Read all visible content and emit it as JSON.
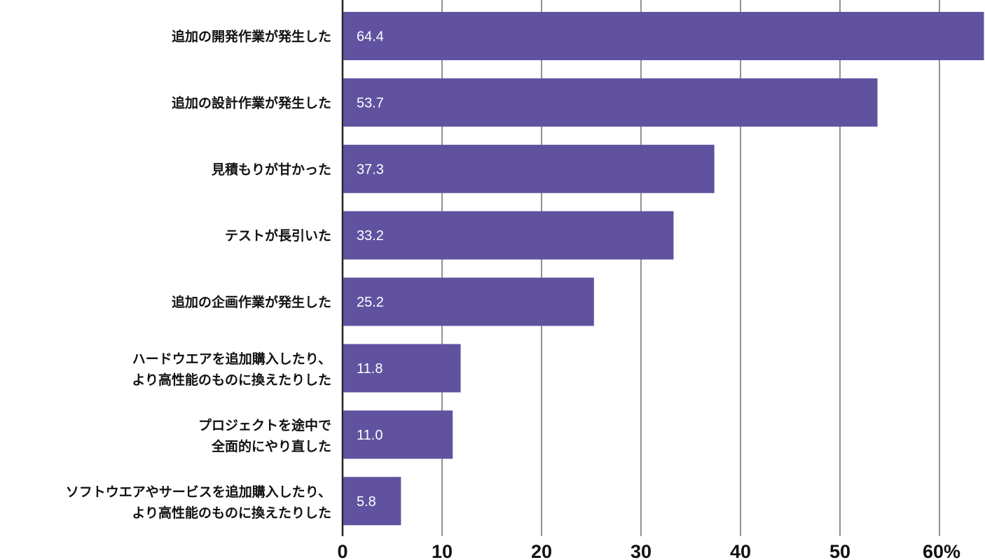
{
  "chart_data": {
    "type": "bar",
    "orientation": "horizontal",
    "categories": [
      [
        "追加の開発作業が発生した"
      ],
      [
        "追加の設計作業が発生した"
      ],
      [
        "見積もりが甘かった"
      ],
      [
        "テストが長引いた"
      ],
      [
        "追加の企画作業が発生した"
      ],
      [
        "ハードウエアを追加購入したり、",
        "より高性能のものに換えたりした"
      ],
      [
        "プロジェクトを途中で",
        "全面的にやり直した"
      ],
      [
        "ソフトウエアやサービスを追加購入したり、",
        "より高性能のものに換えたりした"
      ]
    ],
    "values": [
      64.4,
      53.7,
      37.3,
      33.2,
      25.2,
      11.8,
      11.0,
      5.8
    ],
    "data_labels": [
      "64.4",
      "53.7",
      "37.3",
      "33.2",
      "25.2",
      "11.8",
      "11.0",
      "5.8"
    ],
    "x_ticks": [
      "0",
      "10",
      "20",
      "30",
      "40",
      "50",
      "60%"
    ],
    "xlim": [
      0,
      64.4
    ],
    "grid": "vertical",
    "bar_color": "#6152a0",
    "title": "",
    "xlabel": "",
    "ylabel": ""
  }
}
